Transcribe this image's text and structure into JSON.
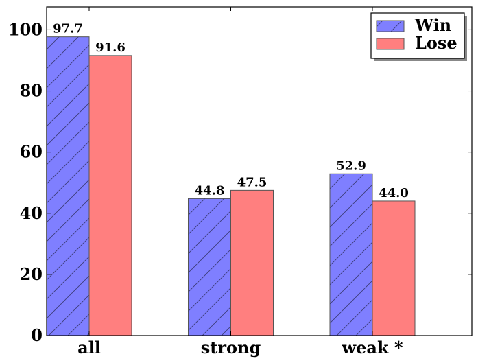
{
  "chart_data": {
    "type": "bar",
    "categories": [
      "all",
      "strong",
      "weak *"
    ],
    "series": [
      {
        "name": "Win",
        "values": [
          97.7,
          44.8,
          52.9
        ],
        "color": "#7f7fff",
        "hatch": "diagonal"
      },
      {
        "name": "Lose",
        "values": [
          91.6,
          47.5,
          44.0
        ],
        "color": "#ff7f7f",
        "hatch": "none"
      }
    ],
    "data_labels": [
      [
        "97.7",
        "44.8",
        "52.9"
      ],
      [
        "91.6",
        "47.5",
        "44.0"
      ]
    ],
    "yticks": [
      "0",
      "20",
      "40",
      "60",
      "80",
      "100"
    ],
    "ylim": [
      0,
      107.5
    ],
    "title": "",
    "xlabel": "",
    "ylabel": "",
    "legend_position": "top-right",
    "grid": false
  }
}
